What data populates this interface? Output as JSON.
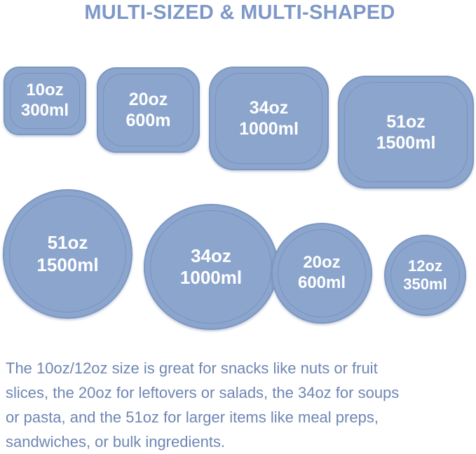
{
  "title": "MULTI-SIZED & MULTI-SHAPED",
  "colors": {
    "title": "#7d98c8",
    "lid": "#8ba5cd",
    "label": "#ffffff",
    "description": "#6e86b4"
  },
  "rectangular_lids": [
    {
      "oz": "10oz",
      "ml": "300ml"
    },
    {
      "oz": "20oz",
      "ml": "600m"
    },
    {
      "oz": "34oz",
      "ml": "1000ml"
    },
    {
      "oz": "51oz",
      "ml": "1500ml"
    }
  ],
  "round_lids": [
    {
      "oz": "51oz",
      "ml": "1500ml"
    },
    {
      "oz": "34oz",
      "ml": "1000ml"
    },
    {
      "oz": "20oz",
      "ml": "600ml"
    },
    {
      "oz": "12oz",
      "ml": "350ml"
    }
  ],
  "description_lines": [
    "The 10oz/12oz size is great for snacks like nuts or fruit",
    "slices, the 20oz for leftovers or salads, the 34oz for soups",
    "or pasta, and the 51oz for larger items like meal preps,",
    "sandwiches, or bulk ingredients."
  ]
}
